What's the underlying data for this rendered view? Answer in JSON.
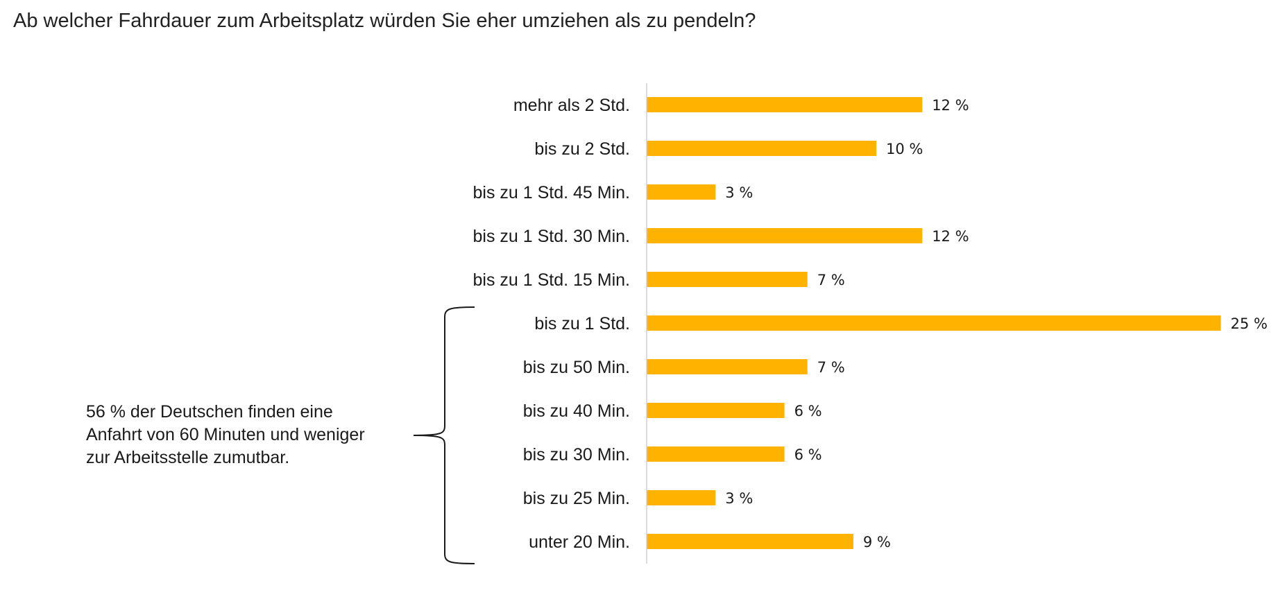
{
  "title": "Ab welcher Fahrdauer zum Arbeitsplatz würden Sie eher umziehen als zu pendeln?",
  "annotation": {
    "lines": [
      "56 % der Deutschen finden eine",
      "Anfahrt von 60 Minuten und weniger",
      "zur Arbeitsstelle zumutbar."
    ]
  },
  "colors": {
    "bar": "#FFB200",
    "axis": "#D0D0D0",
    "bracket": "#1a1a1a"
  },
  "chart_data": {
    "type": "bar",
    "orientation": "horizontal",
    "categories": [
      "mehr als 2 Std.",
      "bis zu 2 Std.",
      "bis zu 1 Std. 45 Min.",
      "bis zu 1 Std. 30 Min.",
      "bis zu 1 Std. 15 Min.",
      "bis zu 1 Std.",
      "bis zu 50 Min.",
      "bis zu 40 Min.",
      "bis zu 30 Min.",
      "bis zu 25 Min.",
      "unter 20 Min."
    ],
    "values": [
      12,
      10,
      3,
      12,
      7,
      25,
      7,
      6,
      6,
      3,
      9
    ],
    "value_labels": [
      "12 %",
      "10 %",
      "3 %",
      "12 %",
      "7 %",
      "25 %",
      "7 %",
      "6 %",
      "6 %",
      "3 %",
      "9 %"
    ],
    "unit": "%",
    "xlim": [
      0,
      25
    ],
    "grid": false,
    "legend": "none",
    "bracket_range": [
      "bis zu 1 Std.",
      "unter 20 Min."
    ]
  }
}
